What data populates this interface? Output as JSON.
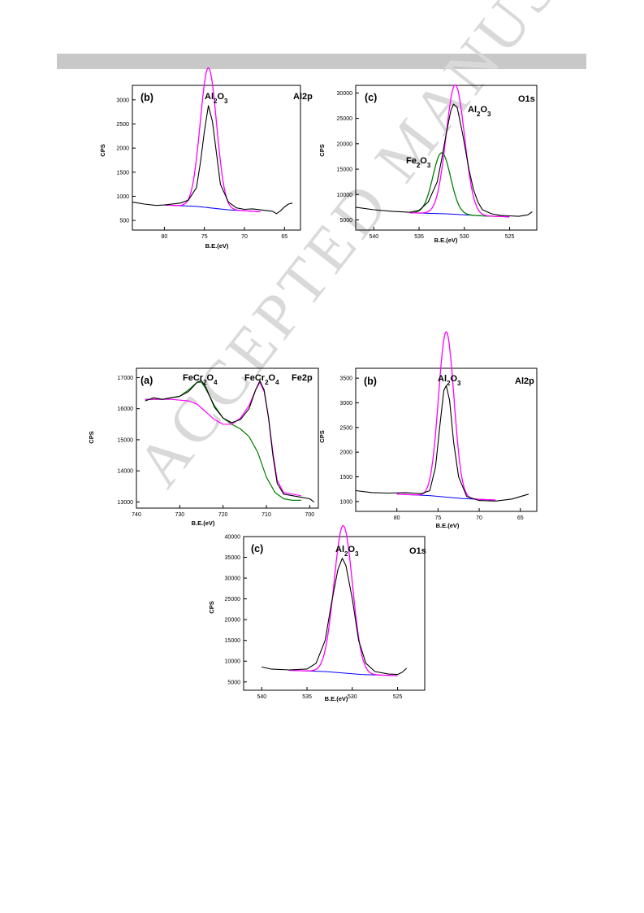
{
  "watermark": {
    "text": "ACCEPTED MANUSCRIPT"
  },
  "chart_data": [
    {
      "type": "line",
      "panel": "(b)",
      "core_level": "Al2p",
      "peak_label": "Al2O3",
      "xlabel": "B.E.(eV)",
      "ylabel": "CPS",
      "xlim": [
        84,
        63
      ],
      "ylim": [
        300,
        3300
      ],
      "xticks": [
        80,
        75,
        70,
        65
      ],
      "yticks": [
        500,
        1000,
        1500,
        2000,
        2500,
        3000
      ],
      "colors": {
        "raw": "#000000",
        "fit": "#ff00ff",
        "background": "#0000ff"
      },
      "peak": {
        "center": 74.5,
        "height": 2900,
        "fwhm": 2.4
      },
      "background_line": [
        [
          80,
          820
        ],
        [
          76,
          790
        ],
        [
          72,
          720
        ],
        [
          68,
          680
        ]
      ],
      "raw_line": [
        [
          84,
          880
        ],
        [
          82.5,
          840
        ],
        [
          81,
          810
        ],
        [
          80,
          820
        ],
        [
          78,
          860
        ],
        [
          77,
          920
        ],
        [
          76,
          1180
        ],
        [
          75.5,
          1700
        ],
        [
          75,
          2350
        ],
        [
          74.5,
          2880
        ],
        [
          74,
          2550
        ],
        [
          73.5,
          1900
        ],
        [
          73,
          1250
        ],
        [
          72,
          880
        ],
        [
          71,
          760
        ],
        [
          70,
          730
        ],
        [
          69,
          740
        ],
        [
          68,
          720
        ],
        [
          67,
          700
        ],
        [
          66.5,
          690
        ],
        [
          66,
          640
        ],
        [
          65.5,
          700
        ],
        [
          65,
          780
        ],
        [
          64.5,
          840
        ],
        [
          64,
          860
        ]
      ]
    },
    {
      "type": "line",
      "panel": "(c)",
      "core_level": "O1s",
      "peak_labels": [
        "Al2O3",
        "Fe2O3"
      ],
      "xlabel": "B.E.(eV)",
      "ylabel": "CPS",
      "xlim": [
        542,
        522
      ],
      "ylim": [
        3000,
        31500
      ],
      "xticks": [
        540,
        535,
        530,
        525
      ],
      "yticks": [
        5000,
        10000,
        15000,
        20000,
        25000,
        30000
      ],
      "colors": {
        "raw": "#000000",
        "al2o3": "#ff00ff",
        "fe2o3": "#008000",
        "background": "#0000ff"
      },
      "al2o3_peak": {
        "center": 531.0,
        "height": 25500,
        "fwhm": 2.4
      },
      "fe2o3_peak": {
        "center": 532.5,
        "height": 12000,
        "fwhm": 2.3
      },
      "background_line": [
        [
          536,
          6400
        ],
        [
          532,
          6200
        ],
        [
          528,
          5800
        ],
        [
          525,
          5600
        ]
      ],
      "raw_line": [
        [
          542,
          7500
        ],
        [
          540,
          7000
        ],
        [
          538,
          6700
        ],
        [
          536,
          6500
        ],
        [
          535,
          6900
        ],
        [
          534,
          8500
        ],
        [
          533,
          12500
        ],
        [
          532.5,
          17000
        ],
        [
          532,
          22000
        ],
        [
          531.5,
          26500
        ],
        [
          531.2,
          27800
        ],
        [
          530.8,
          27200
        ],
        [
          530.2,
          22000
        ],
        [
          529.5,
          15000
        ],
        [
          529,
          11000
        ],
        [
          528.5,
          8500
        ],
        [
          528,
          7000
        ],
        [
          527,
          6200
        ],
        [
          526,
          5900
        ],
        [
          525,
          5800
        ],
        [
          524,
          5700
        ],
        [
          523,
          6000
        ],
        [
          522.5,
          6600
        ]
      ]
    },
    {
      "type": "line",
      "panel": "(a)",
      "core_level": "Fe2p",
      "peak_labels": [
        "FeCr2O4",
        "FeCr2O4"
      ],
      "xlabel": "B.E.(eV)",
      "ylabel": "CPS",
      "xlim": [
        740,
        698
      ],
      "ylim": [
        12800,
        17300
      ],
      "xticks": [
        740,
        730,
        720,
        710,
        700
      ],
      "yticks": [
        13000,
        14000,
        15000,
        16000,
        17000
      ],
      "colors": {
        "raw": "#000000",
        "fit": "#ff00ff",
        "component": "#008000"
      },
      "raw_line": [
        [
          738,
          16250
        ],
        [
          736,
          16350
        ],
        [
          734,
          16300
        ],
        [
          732,
          16350
        ],
        [
          730,
          16400
        ],
        [
          728,
          16550
        ],
        [
          726,
          16850
        ],
        [
          725,
          16900
        ],
        [
          724,
          16700
        ],
        [
          722,
          16050
        ],
        [
          720,
          15700
        ],
        [
          718,
          15550
        ],
        [
          716,
          15650
        ],
        [
          714,
          16000
        ],
        [
          712.5,
          16600
        ],
        [
          711.5,
          16900
        ],
        [
          710.5,
          16600
        ],
        [
          709.5,
          15700
        ],
        [
          708.5,
          14500
        ],
        [
          707.5,
          13600
        ],
        [
          706,
          13250
        ],
        [
          704,
          13200
        ],
        [
          702,
          13150
        ],
        [
          700,
          13100
        ],
        [
          699,
          13000
        ]
      ],
      "fit_line": [
        [
          738,
          16300
        ],
        [
          732,
          16300
        ],
        [
          728,
          16250
        ],
        [
          726,
          16150
        ],
        [
          724,
          15900
        ],
        [
          722,
          15650
        ],
        [
          720,
          15500
        ],
        [
          718,
          15500
        ],
        [
          716,
          15700
        ],
        [
          714,
          16100
        ],
        [
          712.5,
          16600
        ],
        [
          711.5,
          16850
        ],
        [
          710.5,
          16550
        ],
        [
          709.5,
          15700
        ],
        [
          708.5,
          14600
        ],
        [
          707.5,
          13700
        ],
        [
          706,
          13300
        ],
        [
          704,
          13250
        ],
        [
          702,
          13200
        ]
      ],
      "component_line": [
        [
          738,
          16300
        ],
        [
          734,
          16300
        ],
        [
          730,
          16400
        ],
        [
          728,
          16600
        ],
        [
          726,
          16850
        ],
        [
          725,
          16850
        ],
        [
          724,
          16650
        ],
        [
          722,
          16100
        ],
        [
          720,
          15700
        ],
        [
          718,
          15500
        ],
        [
          716,
          15350
        ],
        [
          714,
          15100
        ],
        [
          712,
          14600
        ],
        [
          710,
          13800
        ],
        [
          708,
          13300
        ],
        [
          706,
          13100
        ],
        [
          704,
          13050
        ],
        [
          702,
          13050
        ]
      ]
    },
    {
      "type": "line",
      "panel": "(b)",
      "core_level": "Al2p",
      "peak_label": "Al2O3",
      "xlabel": "B.E.(eV)",
      "ylabel": "CPS",
      "xlim": [
        85,
        63
      ],
      "ylim": [
        800,
        3700
      ],
      "xticks": [
        80,
        75,
        70,
        65
      ],
      "yticks": [
        1000,
        1500,
        2000,
        2500,
        3000,
        3500
      ],
      "colors": {
        "raw": "#000000",
        "fit": "#ff00ff",
        "background": "#0000ff"
      },
      "peak": {
        "center": 74.0,
        "height": 3350,
        "fwhm": 2.2
      },
      "background_line": [
        [
          80,
          1150
        ],
        [
          76,
          1120
        ],
        [
          72,
          1060
        ],
        [
          68,
          1030
        ]
      ],
      "raw_line": [
        [
          85,
          1220
        ],
        [
          83,
          1180
        ],
        [
          81,
          1170
        ],
        [
          79,
          1180
        ],
        [
          77,
          1160
        ],
        [
          76,
          1220
        ],
        [
          75.3,
          1700
        ],
        [
          74.8,
          2500
        ],
        [
          74.3,
          3250
        ],
        [
          74,
          3350
        ],
        [
          73.6,
          3050
        ],
        [
          73.1,
          2200
        ],
        [
          72.5,
          1500
        ],
        [
          71.5,
          1100
        ],
        [
          70,
          1020
        ],
        [
          68,
          1010
        ],
        [
          66,
          1050
        ],
        [
          65,
          1100
        ],
        [
          64,
          1150
        ]
      ]
    },
    {
      "type": "line",
      "panel": "(c)",
      "core_level": "O1s",
      "peak_label": "Al2O3",
      "xlabel": "B.E.(eV)",
      "ylabel": "CPS",
      "xlim": [
        542,
        522
      ],
      "ylim": [
        3000,
        40000
      ],
      "xticks": [
        540,
        535,
        530,
        525
      ],
      "yticks": [
        5000,
        10000,
        15000,
        20000,
        25000,
        30000,
        35000,
        40000
      ],
      "colors": {
        "raw": "#000000",
        "fit": "#ff00ff",
        "background": "#0000ff"
      },
      "peak": {
        "center": 531.0,
        "height": 35500,
        "fwhm": 2.4
      },
      "background_line": [
        [
          537,
          7800
        ],
        [
          533,
          7500
        ],
        [
          529,
          6800
        ],
        [
          525,
          6500
        ]
      ],
      "raw_line": [
        [
          540,
          8600
        ],
        [
          539,
          8100
        ],
        [
          537,
          7900
        ],
        [
          535,
          8100
        ],
        [
          534,
          9500
        ],
        [
          533,
          15000
        ],
        [
          532.3,
          24000
        ],
        [
          531.6,
          32000
        ],
        [
          531.1,
          34800
        ],
        [
          530.7,
          33000
        ],
        [
          530,
          25000
        ],
        [
          529.3,
          15000
        ],
        [
          528.5,
          9500
        ],
        [
          527.5,
          7500
        ],
        [
          526,
          6900
        ],
        [
          525,
          6800
        ],
        [
          524.5,
          7300
        ],
        [
          524,
          8300
        ]
      ]
    }
  ]
}
